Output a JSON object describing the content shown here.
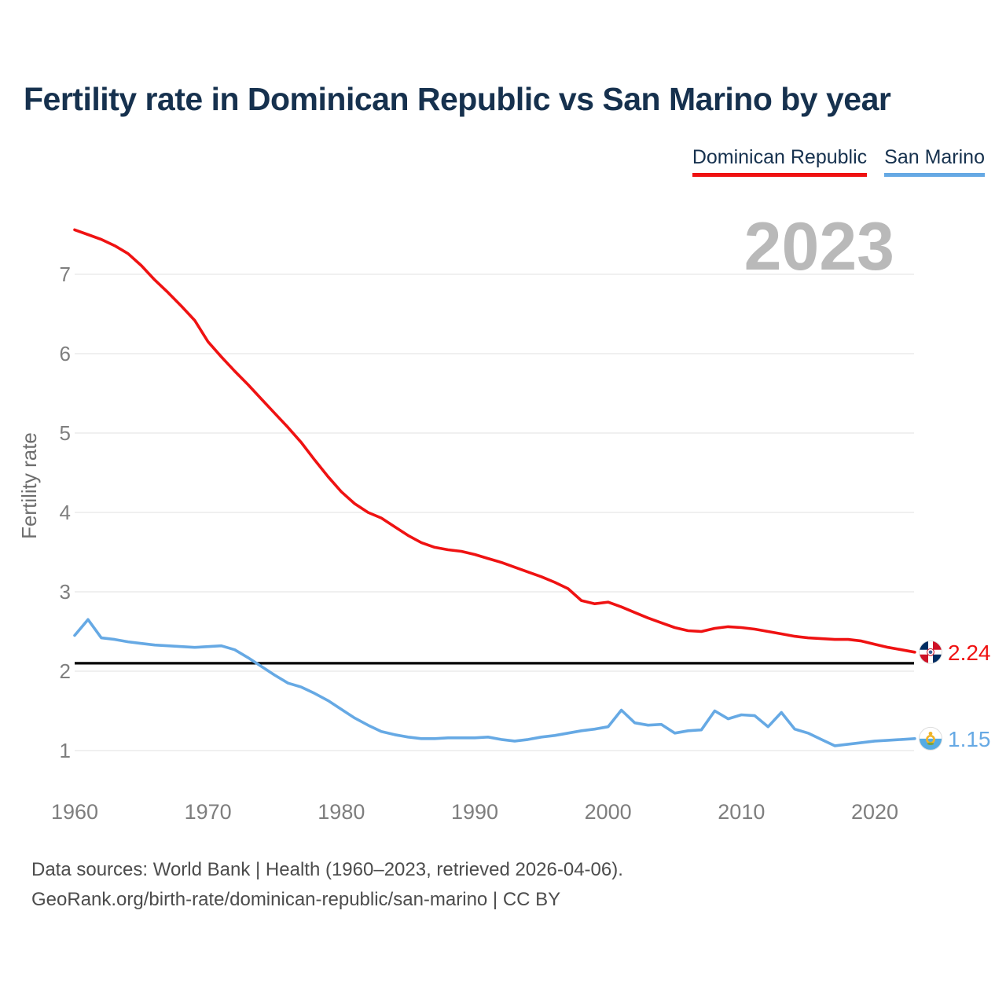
{
  "chart_data": {
    "type": "line",
    "title": "Fertility rate in Dominican Republic vs San Marino by year",
    "xlabel": "",
    "ylabel": "Fertility rate",
    "grid": "horizontal",
    "legend_position": "top-right",
    "watermark": "2023",
    "xlim": [
      1960,
      2023
    ],
    "ylim": [
      1,
      7
    ],
    "x_ticks": [
      1960,
      1970,
      1980,
      1990,
      2000,
      2010,
      2020
    ],
    "y_ticks": [
      1,
      2,
      3,
      4,
      5,
      6,
      7
    ],
    "reference_line": {
      "value": 2.1,
      "color": "#000000"
    },
    "x": [
      1960,
      1961,
      1962,
      1963,
      1964,
      1965,
      1966,
      1967,
      1968,
      1969,
      1970,
      1971,
      1972,
      1973,
      1974,
      1975,
      1976,
      1977,
      1978,
      1979,
      1980,
      1981,
      1982,
      1983,
      1984,
      1985,
      1986,
      1987,
      1988,
      1989,
      1990,
      1991,
      1992,
      1993,
      1994,
      1995,
      1996,
      1997,
      1998,
      1999,
      2000,
      2001,
      2002,
      2003,
      2004,
      2005,
      2006,
      2007,
      2008,
      2009,
      2010,
      2011,
      2012,
      2013,
      2014,
      2015,
      2016,
      2017,
      2018,
      2019,
      2020,
      2021,
      2022,
      2023
    ],
    "series": [
      {
        "name": "Dominican Republic",
        "color": "#ef1212",
        "icon": "dominican-republic-flag-icon",
        "end_label": "2.24",
        "values": [
          7.56,
          7.5,
          7.44,
          7.36,
          7.26,
          7.11,
          6.93,
          6.77,
          6.6,
          6.42,
          6.15,
          5.96,
          5.78,
          5.61,
          5.43,
          5.25,
          5.07,
          4.88,
          4.66,
          4.45,
          4.26,
          4.11,
          4.0,
          3.93,
          3.82,
          3.71,
          3.62,
          3.56,
          3.53,
          3.51,
          3.47,
          3.42,
          3.37,
          3.31,
          3.25,
          3.19,
          3.12,
          3.04,
          2.89,
          2.85,
          2.87,
          2.81,
          2.74,
          2.67,
          2.61,
          2.55,
          2.51,
          2.5,
          2.54,
          2.56,
          2.55,
          2.53,
          2.5,
          2.47,
          2.44,
          2.42,
          2.41,
          2.4,
          2.4,
          2.38,
          2.34,
          2.3,
          2.27,
          2.24
        ]
      },
      {
        "name": "San Marino",
        "color": "#66a9e4",
        "icon": "san-marino-flag-icon",
        "end_label": "1.15",
        "values": [
          2.45,
          2.65,
          2.42,
          2.4,
          2.37,
          2.35,
          2.33,
          2.32,
          2.31,
          2.3,
          2.31,
          2.32,
          2.27,
          2.17,
          2.06,
          1.95,
          1.85,
          1.8,
          1.72,
          1.63,
          1.52,
          1.41,
          1.32,
          1.24,
          1.2,
          1.17,
          1.15,
          1.15,
          1.16,
          1.16,
          1.16,
          1.17,
          1.14,
          1.12,
          1.14,
          1.17,
          1.19,
          1.22,
          1.25,
          1.27,
          1.3,
          1.51,
          1.35,
          1.32,
          1.33,
          1.22,
          1.25,
          1.26,
          1.5,
          1.4,
          1.45,
          1.44,
          1.3,
          1.48,
          1.27,
          1.22,
          1.14,
          1.06,
          1.08,
          1.1,
          1.12,
          1.13,
          1.14,
          1.15
        ]
      }
    ]
  },
  "footer": {
    "line1": "Data sources: World Bank | Health (1960–2023, retrieved 2026-04-06).",
    "line2": "GeoRank.org/birth-rate/dominican-republic/san-marino | CC BY"
  },
  "style": {
    "title_color": "#16314e",
    "tick_color": "#7e7e7e",
    "axis_label_color": "#6e6e6e",
    "gridline_color": "#ececec",
    "watermark_color": "#b9b9b9",
    "footer_color": "#4c4c4c"
  }
}
